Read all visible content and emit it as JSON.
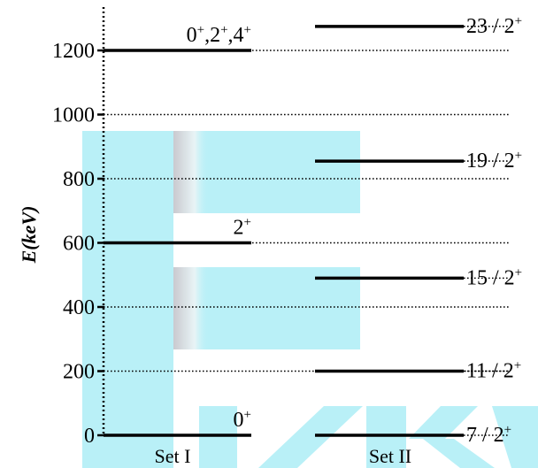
{
  "chart_data": {
    "type": "level-scheme",
    "ylabel": "E(keV)",
    "ylim": [
      0,
      1300
    ],
    "yticks": [
      0,
      200,
      400,
      600,
      800,
      1000,
      1200
    ],
    "tick_labels": [
      "0",
      "200",
      "400",
      "600",
      "800",
      "1000",
      "1200"
    ],
    "sets": [
      {
        "label": "Set I",
        "levels": [
          {
            "energy": 0,
            "label": "0",
            "sup": "+"
          },
          {
            "energy": 600,
            "label": "2",
            "sup": "+"
          },
          {
            "energy": 1200,
            "label": "0 ,2 ,4",
            "sup": "+"
          }
        ]
      },
      {
        "label": "Set II",
        "levels": [
          {
            "energy": 0,
            "label": "7 / 2",
            "sup": "+"
          },
          {
            "energy": 200,
            "label": "11 / 2",
            "sup": "+"
          },
          {
            "energy": 490,
            "label": "15 / 2",
            "sup": "+"
          },
          {
            "energy": 855,
            "label": "19 / 2",
            "sup": "+"
          },
          {
            "energy": 1275,
            "label": "23 / 2",
            "sup": "+"
          }
        ]
      }
    ],
    "grid": "dotted"
  },
  "watermark": {
    "color": "#b9f0f7"
  }
}
